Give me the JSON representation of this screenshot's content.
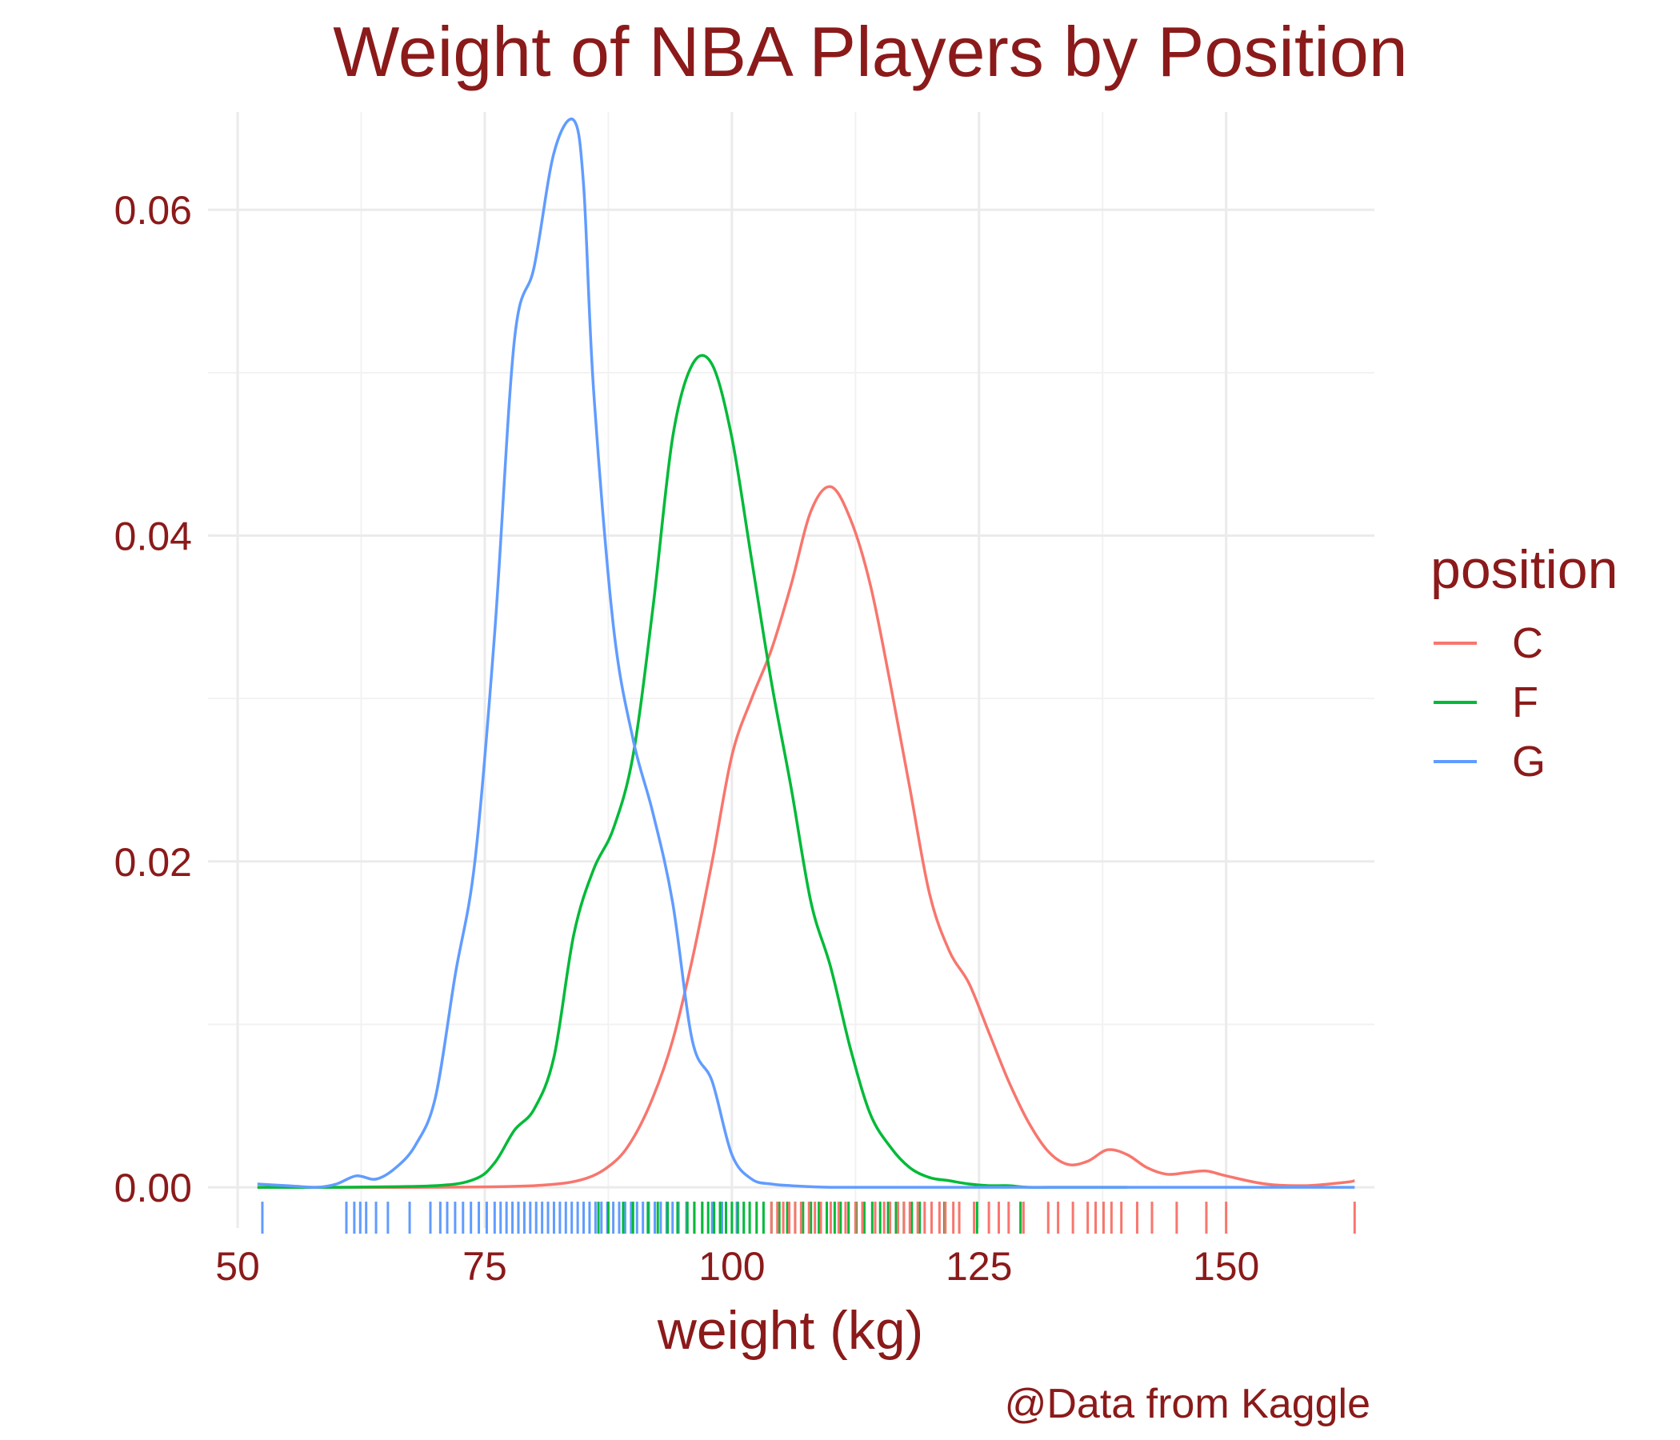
{
  "chart_data": {
    "type": "line",
    "title": "Weight of NBA Players by Position",
    "xlabel": "weight (kg)",
    "ylabel": "",
    "caption": "@Data from Kaggle",
    "legend_title": "position",
    "legend_position": "right",
    "xlim": [
      47,
      165
    ],
    "ylim": [
      -0.0025,
      0.066
    ],
    "x_ticks": [
      "50",
      "75",
      "100",
      "125",
      "150"
    ],
    "y_ticks": [
      "0.00",
      "0.02",
      "0.04",
      "0.06"
    ],
    "grid": true,
    "series": [
      {
        "name": "C",
        "color": "#F8766D",
        "x": [
          52,
          60,
          70,
          80,
          85,
          88,
          90,
          92,
          94,
          96,
          98,
          100,
          102,
          104,
          106,
          108,
          110,
          112,
          114,
          116,
          118,
          120,
          122,
          124,
          126,
          128,
          130,
          132,
          134,
          136,
          138,
          140,
          142,
          144,
          146,
          148,
          150,
          154,
          158,
          162,
          163
        ],
        "values": [
          0,
          0,
          0,
          0.0001,
          0.0005,
          0.0015,
          0.003,
          0.0055,
          0.009,
          0.014,
          0.02,
          0.0265,
          0.03,
          0.033,
          0.037,
          0.0415,
          0.043,
          0.041,
          0.037,
          0.031,
          0.0245,
          0.018,
          0.0145,
          0.0125,
          0.0095,
          0.0065,
          0.004,
          0.0022,
          0.0014,
          0.0016,
          0.0023,
          0.002,
          0.0012,
          0.0008,
          0.0009,
          0.001,
          0.0007,
          0.0002,
          0.0001,
          0.0003,
          0.0004
        ]
      },
      {
        "name": "F",
        "color": "#00BA38",
        "x": [
          52,
          60,
          70,
          74,
          76,
          78,
          80,
          82,
          84,
          86,
          88,
          90,
          92,
          94,
          96,
          98,
          100,
          102,
          104,
          106,
          108,
          110,
          112,
          114,
          116,
          118,
          120,
          122,
          124,
          126,
          128,
          130,
          134,
          140
        ],
        "values": [
          0,
          0,
          0.0001,
          0.0005,
          0.0015,
          0.0035,
          0.0048,
          0.008,
          0.0155,
          0.0195,
          0.022,
          0.0265,
          0.0355,
          0.046,
          0.0505,
          0.0505,
          0.046,
          0.0385,
          0.031,
          0.0245,
          0.0175,
          0.0135,
          0.0085,
          0.0045,
          0.0025,
          0.0012,
          0.0006,
          0.0004,
          0.0002,
          0.0001,
          0.0001,
          0,
          0,
          0
        ]
      },
      {
        "name": "G",
        "color": "#619CFF",
        "x": [
          52,
          55,
          58,
          60,
          62,
          64,
          66,
          68,
          70,
          72,
          74,
          76,
          78,
          80,
          82,
          84,
          85,
          86,
          88,
          90,
          92,
          94,
          96,
          98,
          100,
          102,
          104,
          106,
          110,
          120,
          140,
          163
        ],
        "values": [
          0.0002,
          0.0001,
          0,
          0.0002,
          0.0007,
          0.0005,
          0.0012,
          0.0026,
          0.0055,
          0.013,
          0.02,
          0.034,
          0.052,
          0.0565,
          0.0635,
          0.0655,
          0.0615,
          0.049,
          0.0345,
          0.0275,
          0.023,
          0.0175,
          0.009,
          0.0065,
          0.002,
          0.0005,
          0.0002,
          0.0001,
          0,
          0,
          0,
          0
        ]
      }
    ],
    "rug": {
      "C": [
        104,
        104.6,
        105.2,
        105.8,
        106.4,
        107,
        107.8,
        108.4,
        109,
        110,
        110.8,
        111.5,
        112.5,
        113.2,
        114.5,
        115.4,
        116,
        116.8,
        117.4,
        118,
        118.8,
        119.5,
        120.2,
        121,
        121.6,
        122.4,
        123,
        124.5,
        126,
        127,
        128,
        129.5,
        132,
        133,
        134.5,
        136,
        136.8,
        137.6,
        138.4,
        139.4,
        141,
        142.5,
        145,
        148,
        150,
        163
      ],
      "F": [
        86.5,
        87.5,
        89,
        90,
        91.5,
        92.5,
        93.5,
        94.5,
        95.5,
        96.2,
        97,
        97.6,
        98.2,
        98.8,
        99.4,
        100,
        100.6,
        101.2,
        101.8,
        102.5,
        103.2,
        104,
        104.8,
        105.6,
        106.4,
        107.2,
        108,
        108.8,
        109.6,
        110.4,
        111,
        111.8,
        112.6,
        113.4,
        114.2,
        115,
        115.8,
        116.6,
        117.4,
        118.2,
        119,
        121.5,
        124.8,
        129.2
      ],
      "G": [
        52.5,
        61,
        61.8,
        62.4,
        63,
        64,
        65.2,
        67.4,
        69.5,
        70.5,
        71.2,
        72,
        72.8,
        73.6,
        74.4,
        75.2,
        76,
        76.6,
        77.2,
        77.8,
        78.4,
        79,
        79.6,
        80.2,
        80.8,
        81.4,
        82,
        82.6,
        83.2,
        83.8,
        84.4,
        85,
        85.6,
        86.2,
        86.8,
        87.4,
        88,
        88.6,
        89.2,
        89.8,
        90.4,
        91,
        91.6,
        92.2,
        92.8,
        93.4,
        94,
        94.6,
        95.4,
        96.2,
        97,
        98,
        99,
        100.5
      ]
    }
  }
}
